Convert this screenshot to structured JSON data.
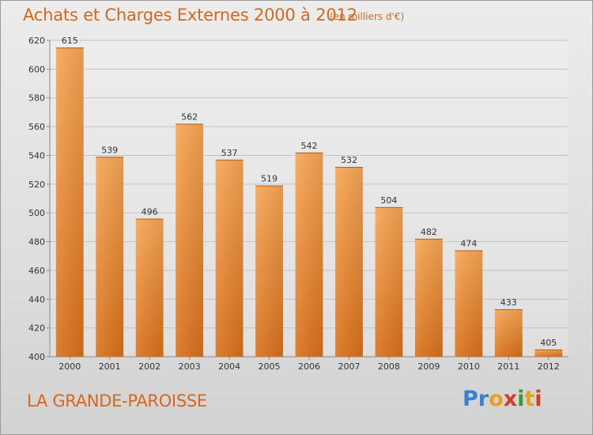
{
  "chart_data": {
    "type": "bar",
    "title": "Achats et Charges Externes 2000 à 2012",
    "subtitle": "(en milliers d'€)",
    "categories": [
      "2000",
      "2001",
      "2002",
      "2003",
      "2004",
      "2005",
      "2006",
      "2007",
      "2008",
      "2009",
      "2010",
      "2011",
      "2012"
    ],
    "values": [
      615,
      539,
      496,
      562,
      537,
      519,
      542,
      532,
      504,
      482,
      474,
      433,
      405
    ],
    "ylim": [
      400,
      620
    ],
    "yticks": [
      400,
      420,
      440,
      460,
      480,
      500,
      520,
      540,
      560,
      580,
      600,
      620
    ],
    "grid": true,
    "bar_color": "#f08c28"
  },
  "footer": {
    "commune": "LA GRANDE-PAROISSE",
    "logo_text": "Proxiti",
    "logo_colors": [
      "#3a7fd0",
      "#3a7fd0",
      "#e8a020",
      "#d63b2a",
      "#3a9a3a",
      "#e8a020",
      "#d63b2a"
    ]
  }
}
